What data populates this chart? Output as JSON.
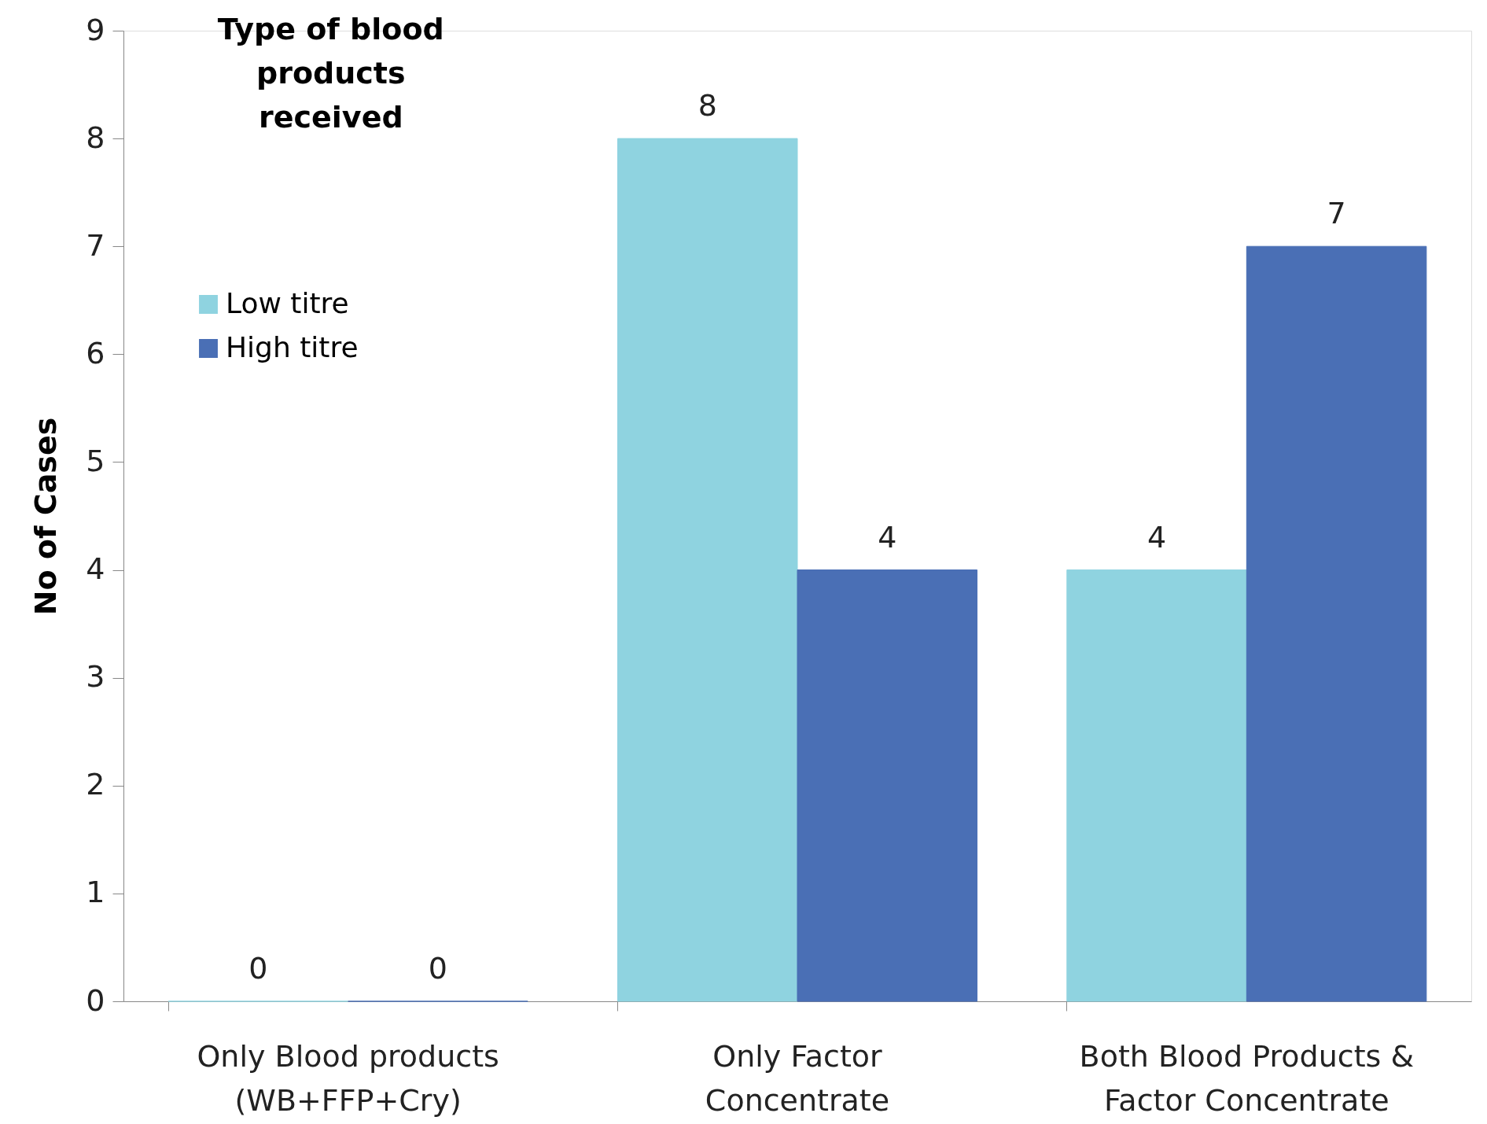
{
  "chart_data": {
    "type": "bar",
    "title": "Type of blood products received",
    "ylabel": "No of Cases",
    "categories": [
      "Only Blood products (WB+FFP+Cry)",
      "Only Factor Concentrate",
      "Both Blood Products & Factor Concentrate"
    ],
    "series": [
      {
        "name": "Low titre",
        "color": "#8fd3e0",
        "values": [
          0,
          8,
          4
        ]
      },
      {
        "name": "High titre",
        "color": "#4a6fb5",
        "values": [
          0,
          4,
          7
        ]
      }
    ],
    "ylim": [
      0,
      9
    ],
    "yticks": [
      0,
      1,
      2,
      3,
      4,
      5,
      6,
      7,
      8,
      9
    ],
    "grid": false,
    "legend": "left",
    "data_labels": true
  }
}
